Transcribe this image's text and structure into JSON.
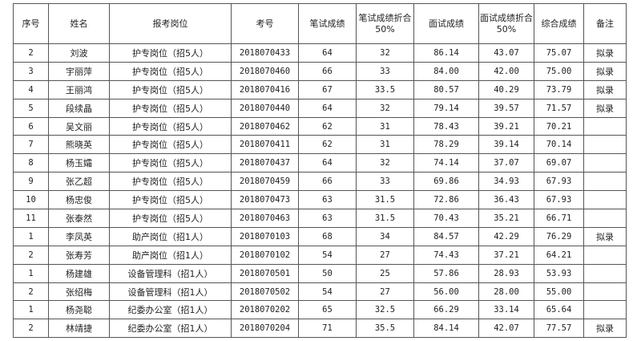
{
  "table": {
    "headers": [
      "序号",
      "姓名",
      "报考岗位",
      "考号",
      "笔试成绩",
      "笔试成绩折合50%",
      "面试成绩",
      "面试成绩折合50%",
      "综合成绩",
      "备注"
    ],
    "rows": [
      [
        "2",
        "刘波",
        "护专岗位（招5人）",
        "2018070433",
        "64",
        "32",
        "86.14",
        "43.07",
        "75.07",
        "拟录"
      ],
      [
        "3",
        "宇丽萍",
        "护专岗位（招5人）",
        "2018070460",
        "66",
        "33",
        "84.00",
        "42.00",
        "75.00",
        "拟录"
      ],
      [
        "4",
        "王丽鸿",
        "护专岗位（招5人）",
        "2018070416",
        "67",
        "33.5",
        "80.57",
        "40.29",
        "73.79",
        "拟录"
      ],
      [
        "5",
        "段续晶",
        "护专岗位（招5人）",
        "2018070440",
        "64",
        "32",
        "79.14",
        "39.57",
        "71.57",
        "拟录"
      ],
      [
        "6",
        "吴文丽",
        "护专岗位（招5人）",
        "2018070462",
        "62",
        "31",
        "78.43",
        "39.21",
        "70.21",
        ""
      ],
      [
        "7",
        "熊晓英",
        "护专岗位（招5人）",
        "2018070411",
        "62",
        "31",
        "78.29",
        "39.14",
        "70.14",
        ""
      ],
      [
        "8",
        "杨玉孀",
        "护专岗位（招5人）",
        "2018070437",
        "64",
        "32",
        "74.14",
        "37.07",
        "69.07",
        ""
      ],
      [
        "9",
        "张乙超",
        "护专岗位（招5人）",
        "2018070459",
        "66",
        "33",
        "69.86",
        "34.93",
        "67.93",
        ""
      ],
      [
        "10",
        "杨忠俊",
        "护专岗位（招5人）",
        "2018070473",
        "63",
        "31.5",
        "72.86",
        "36.43",
        "67.93",
        ""
      ],
      [
        "11",
        "张泰然",
        "护专岗位（招5人）",
        "2018070463",
        "63",
        "31.5",
        "70.43",
        "35.21",
        "66.71",
        ""
      ],
      [
        "1",
        "李凤英",
        "助产岗位（招1人）",
        "2018070103",
        "68",
        "34",
        "84.57",
        "42.29",
        "76.29",
        "拟录"
      ],
      [
        "2",
        "张寿芳",
        "助产岗位（招1人）",
        "2018070102",
        "54",
        "27",
        "74.43",
        "37.21",
        "64.21",
        ""
      ],
      [
        "1",
        "杨建雄",
        "设备管理科（招1人）",
        "2018070501",
        "50",
        "25",
        "57.86",
        "28.93",
        "53.93",
        ""
      ],
      [
        "2",
        "张绍梅",
        "设备管理科（招1人）",
        "2018070502",
        "54",
        "27",
        "56.00",
        "28.00",
        "55.00",
        ""
      ],
      [
        "1",
        "杨尧聪",
        "纪委办公室（招1人）",
        "2018070202",
        "65",
        "32.5",
        "66.29",
        "33.14",
        "65.64",
        ""
      ],
      [
        "2",
        "林靖捷",
        "纪委办公室（招1人）",
        "2018070204",
        "71",
        "35.5",
        "84.14",
        "42.07",
        "77.57",
        "拟录"
      ]
    ]
  }
}
